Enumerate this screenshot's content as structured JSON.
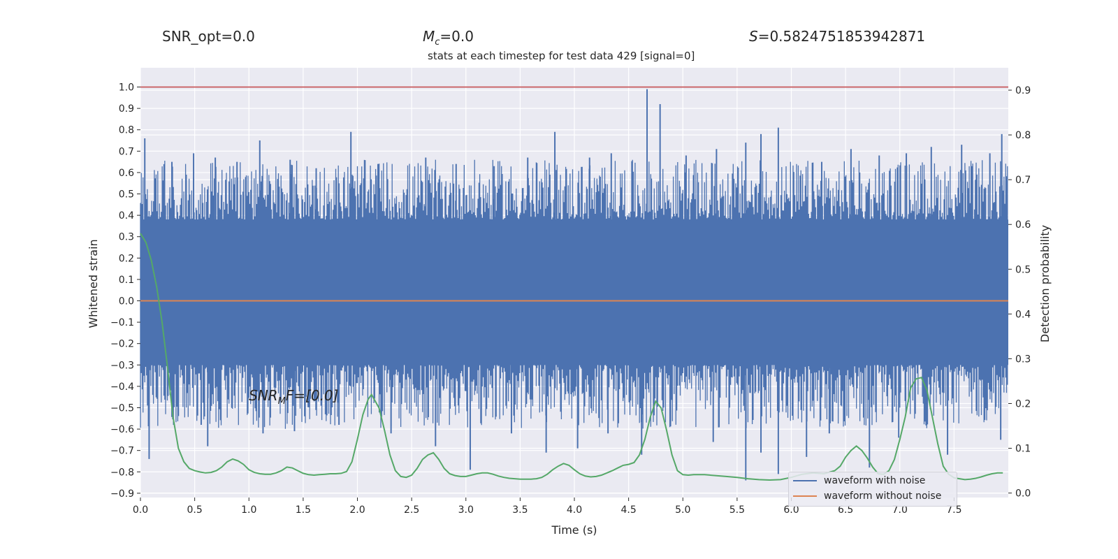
{
  "header": {
    "snr_opt": "SNR_opt=0.0",
    "mc_symbol": "M",
    "mc_sub": "c",
    "mc_value": "=0.0",
    "s_symbol": "S",
    "s_value": "=0.5824751853942871"
  },
  "annotation": {
    "main": "SNR",
    "sub": "M",
    "rest": "F=[0.0]"
  },
  "colors": {
    "noisy": "#4c72b0",
    "clean": "#dd8452",
    "prob": "#55a868",
    "threshold": "#c44e52",
    "axes_bg": "#eaeaf2",
    "grid": "#ffffff"
  },
  "chart_data": {
    "type": "line",
    "title": "stats at each timestep for test data 429 [signal=0]",
    "xlabel": "Time (s)",
    "ylabel": "Whitened strain",
    "y2label": "Detection probability",
    "xlim": [
      0,
      8.0
    ],
    "ylim": [
      -0.92,
      1.09
    ],
    "y2lim": [
      -0.01,
      0.95
    ],
    "xticks": [
      0.0,
      0.5,
      1.0,
      1.5,
      2.0,
      2.5,
      3.0,
      3.5,
      4.0,
      4.5,
      5.0,
      5.5,
      6.0,
      6.5,
      7.0,
      7.5
    ],
    "yticks": [
      1.0,
      0.9,
      0.8,
      0.7,
      0.6,
      0.5,
      0.4,
      0.3,
      0.2,
      0.1,
      0.0,
      -0.1,
      -0.2,
      -0.3,
      -0.4,
      -0.5,
      -0.6,
      -0.7,
      -0.8,
      -0.9
    ],
    "y2ticks": [
      0.9,
      0.8,
      0.7,
      0.6,
      0.5,
      0.4,
      0.3,
      0.2,
      0.1,
      0.0
    ],
    "grid": true,
    "legend_position": "lower-right",
    "series": [
      {
        "name": "waveform with noise",
        "axis": "left",
        "note_band": [
          -0.3,
          0.38
        ],
        "peaks": [
          {
            "x": 0.04,
            "y": 0.76
          },
          {
            "x": 0.29,
            "y": 0.65
          },
          {
            "x": 0.49,
            "y": 0.69
          },
          {
            "x": 0.69,
            "y": 0.67
          },
          {
            "x": 0.89,
            "y": 0.65
          },
          {
            "x": 1.1,
            "y": 0.75
          },
          {
            "x": 1.38,
            "y": 0.66
          },
          {
            "x": 1.62,
            "y": 0.62
          },
          {
            "x": 1.94,
            "y": 0.79
          },
          {
            "x": 2.19,
            "y": 0.64
          },
          {
            "x": 2.63,
            "y": 0.67
          },
          {
            "x": 2.91,
            "y": 0.64
          },
          {
            "x": 3.26,
            "y": 0.63
          },
          {
            "x": 3.57,
            "y": 0.67
          },
          {
            "x": 3.82,
            "y": 0.79
          },
          {
            "x": 4.14,
            "y": 0.67
          },
          {
            "x": 4.34,
            "y": 0.69
          },
          {
            "x": 4.67,
            "y": 0.99
          },
          {
            "x": 4.79,
            "y": 0.92
          },
          {
            "x": 5.03,
            "y": 0.68
          },
          {
            "x": 5.31,
            "y": 0.71
          },
          {
            "x": 5.58,
            "y": 0.74
          },
          {
            "x": 5.72,
            "y": 0.78
          },
          {
            "x": 5.88,
            "y": 0.81
          },
          {
            "x": 6.28,
            "y": 0.65
          },
          {
            "x": 6.55,
            "y": 0.71
          },
          {
            "x": 6.81,
            "y": 0.68
          },
          {
            "x": 7.06,
            "y": 0.69
          },
          {
            "x": 7.29,
            "y": 0.72
          },
          {
            "x": 7.57,
            "y": 0.73
          },
          {
            "x": 7.83,
            "y": 0.69
          },
          {
            "x": 7.94,
            "y": 0.78
          }
        ],
        "troughs": [
          {
            "x": 0.08,
            "y": -0.74
          },
          {
            "x": 0.56,
            "y": -0.58
          },
          {
            "x": 0.62,
            "y": -0.68
          },
          {
            "x": 1.13,
            "y": -0.62
          },
          {
            "x": 1.42,
            "y": -0.61
          },
          {
            "x": 1.83,
            "y": -0.58
          },
          {
            "x": 2.31,
            "y": -0.62
          },
          {
            "x": 2.72,
            "y": -0.68
          },
          {
            "x": 3.04,
            "y": -0.79
          },
          {
            "x": 3.42,
            "y": -0.62
          },
          {
            "x": 3.74,
            "y": -0.71
          },
          {
            "x": 4.03,
            "y": -0.69
          },
          {
            "x": 4.31,
            "y": -0.62
          },
          {
            "x": 4.62,
            "y": -0.72
          },
          {
            "x": 5.28,
            "y": -0.66
          },
          {
            "x": 5.58,
            "y": -0.84
          },
          {
            "x": 5.72,
            "y": -0.71
          },
          {
            "x": 5.88,
            "y": -0.81
          },
          {
            "x": 6.14,
            "y": -0.73
          },
          {
            "x": 6.35,
            "y": -0.62
          },
          {
            "x": 6.72,
            "y": -0.78
          },
          {
            "x": 6.99,
            "y": -0.64
          },
          {
            "x": 7.44,
            "y": -0.72
          },
          {
            "x": 7.93,
            "y": -0.65
          }
        ]
      },
      {
        "name": "waveform without noise",
        "axis": "left",
        "x": [
          0.0,
          8.0
        ],
        "y": [
          0.0,
          0.0
        ]
      },
      {
        "name": "",
        "axis": "right",
        "x": [
          0.0,
          0.05,
          0.1,
          0.15,
          0.2,
          0.25,
          0.3,
          0.35,
          0.4,
          0.45,
          0.5,
          0.55,
          0.6,
          0.65,
          0.7,
          0.75,
          0.8,
          0.85,
          0.9,
          0.95,
          1.0,
          1.05,
          1.1,
          1.15,
          1.2,
          1.25,
          1.3,
          1.35,
          1.4,
          1.45,
          1.5,
          1.55,
          1.6,
          1.65,
          1.7,
          1.75,
          1.8,
          1.85,
          1.9,
          1.95,
          2.0,
          2.05,
          2.1,
          2.13,
          2.2,
          2.25,
          2.3,
          2.35,
          2.4,
          2.45,
          2.5,
          2.55,
          2.6,
          2.65,
          2.7,
          2.75,
          2.8,
          2.85,
          2.9,
          2.95,
          3.0,
          3.05,
          3.1,
          3.15,
          3.2,
          3.25,
          3.3,
          3.35,
          3.4,
          3.45,
          3.5,
          3.55,
          3.6,
          3.65,
          3.7,
          3.75,
          3.8,
          3.85,
          3.9,
          3.95,
          4.0,
          4.05,
          4.1,
          4.15,
          4.2,
          4.25,
          4.3,
          4.35,
          4.4,
          4.45,
          4.5,
          4.55,
          4.6,
          4.65,
          4.7,
          4.75,
          4.8,
          4.85,
          4.9,
          4.95,
          5.0,
          5.05,
          5.1,
          5.2,
          5.3,
          5.4,
          5.5,
          5.6,
          5.7,
          5.8,
          5.9,
          6.0,
          6.1,
          6.2,
          6.3,
          6.4,
          6.45,
          6.5,
          6.55,
          6.6,
          6.65,
          6.7,
          6.75,
          6.8,
          6.85,
          6.9,
          6.95,
          7.0,
          7.05,
          7.1,
          7.15,
          7.2,
          7.25,
          7.3,
          7.35,
          7.4,
          7.45,
          7.5,
          7.55,
          7.6,
          7.65,
          7.7,
          7.75,
          7.8,
          7.85,
          7.9,
          7.95
        ],
        "y": [
          0.58,
          0.56,
          0.52,
          0.46,
          0.38,
          0.28,
          0.17,
          0.1,
          0.07,
          0.055,
          0.05,
          0.047,
          0.045,
          0.046,
          0.05,
          0.058,
          0.07,
          0.076,
          0.072,
          0.064,
          0.052,
          0.046,
          0.043,
          0.042,
          0.042,
          0.045,
          0.05,
          0.058,
          0.056,
          0.05,
          0.044,
          0.041,
          0.04,
          0.041,
          0.042,
          0.043,
          0.043,
          0.044,
          0.048,
          0.07,
          0.12,
          0.175,
          0.21,
          0.22,
          0.19,
          0.14,
          0.085,
          0.05,
          0.037,
          0.035,
          0.04,
          0.055,
          0.075,
          0.085,
          0.09,
          0.075,
          0.055,
          0.043,
          0.039,
          0.037,
          0.037,
          0.04,
          0.043,
          0.045,
          0.045,
          0.042,
          0.038,
          0.035,
          0.033,
          0.032,
          0.031,
          0.031,
          0.031,
          0.032,
          0.035,
          0.042,
          0.052,
          0.06,
          0.066,
          0.062,
          0.052,
          0.043,
          0.038,
          0.036,
          0.037,
          0.04,
          0.045,
          0.05,
          0.056,
          0.062,
          0.064,
          0.068,
          0.085,
          0.12,
          0.17,
          0.205,
          0.19,
          0.14,
          0.085,
          0.05,
          0.041,
          0.04,
          0.041,
          0.041,
          0.039,
          0.037,
          0.035,
          0.032,
          0.03,
          0.029,
          0.03,
          0.035,
          0.042,
          0.045,
          0.043,
          0.05,
          0.06,
          0.08,
          0.095,
          0.105,
          0.095,
          0.078,
          0.058,
          0.043,
          0.042,
          0.05,
          0.075,
          0.12,
          0.17,
          0.235,
          0.255,
          0.258,
          0.23,
          0.17,
          0.11,
          0.06,
          0.042,
          0.034,
          0.032,
          0.03,
          0.031,
          0.033,
          0.036,
          0.04,
          0.043,
          0.045,
          0.045
        ]
      },
      {
        "name": "",
        "axis": "left",
        "x": [
          0.0,
          8.0
        ],
        "y": [
          1.0,
          1.0
        ]
      }
    ]
  }
}
